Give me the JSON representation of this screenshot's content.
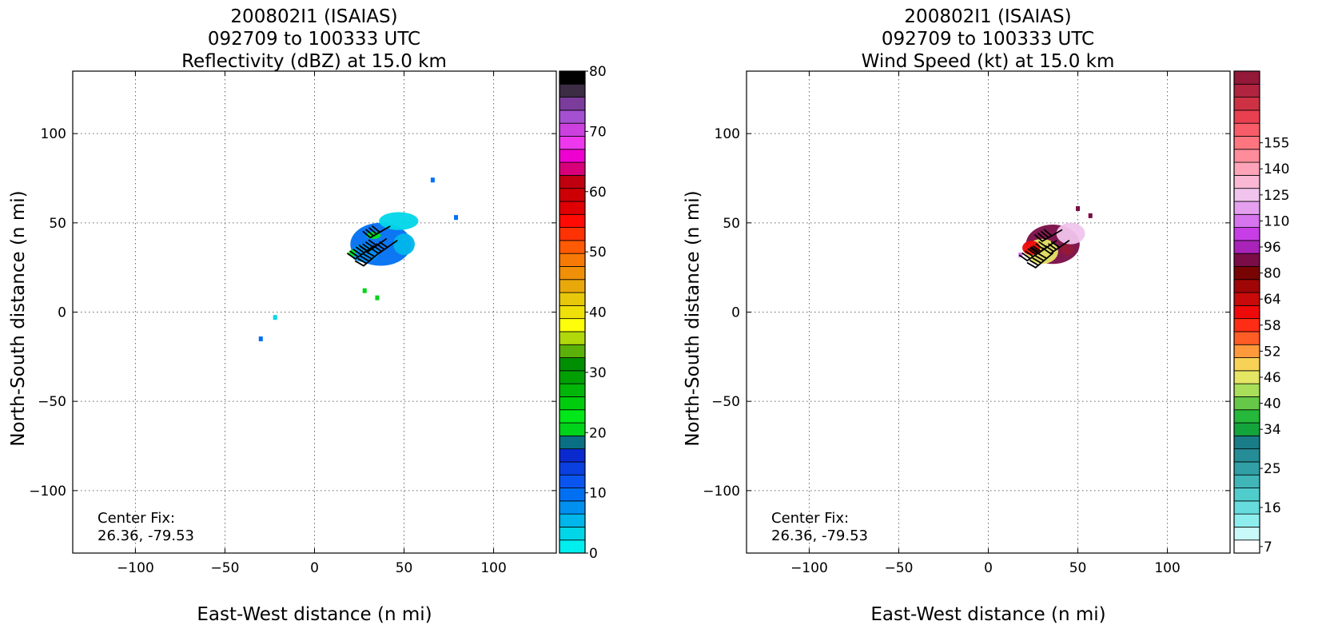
{
  "chart_data": [
    {
      "type": "heatmap",
      "title_lines": [
        "200802I1 (ISAIAS)",
        "092709 to 100333 UTC",
        "Reflectivity (dBZ) at 15.0 km"
      ],
      "xlabel": "East-West distance (n mi)",
      "ylabel": "North-South distance (n mi)",
      "xlim": [
        -135,
        135
      ],
      "ylim": [
        -135,
        135
      ],
      "xticks": [
        -100,
        -50,
        0,
        50,
        100
      ],
      "yticks": [
        -100,
        -50,
        0,
        50,
        100
      ],
      "tick_labels": [
        "−100",
        "−50",
        "0",
        "50",
        "100"
      ],
      "grid": true,
      "annotation_lines": [
        "Center Fix:",
        "26.36, -79.53"
      ],
      "colorbar": {
        "min": 0,
        "max": 80,
        "tick_values": [
          0,
          10,
          20,
          30,
          40,
          50,
          60,
          70,
          80
        ],
        "tick_labels": [
          "0",
          "10",
          "20",
          "30",
          "40",
          "50",
          "60",
          "70",
          "80"
        ],
        "colors": [
          "#00eeee",
          "#00d6e8",
          "#00b6ea",
          "#0090f0",
          "#0070f2",
          "#0a55f0",
          "#0a3fe0",
          "#0a2ad0",
          "#0a6f82",
          "#00d41a",
          "#00e81a",
          "#00cc0e",
          "#00b608",
          "#00a004",
          "#008e02",
          "#5cb00a",
          "#b0d80a",
          "#fffe0a",
          "#f0e00a",
          "#e8c80a",
          "#e8a80a",
          "#f09008",
          "#f87a06",
          "#ff5a04",
          "#ff3204",
          "#ff0a04",
          "#e00004",
          "#cc0004",
          "#c00010",
          "#d8007a",
          "#ee00d0",
          "#ee38ee",
          "#cc40e0",
          "#a450d0",
          "#7b3c9c",
          "#3c2c44",
          "#000000"
        ]
      },
      "echo_regions": [
        {
          "shape": "blob",
          "cx": 37,
          "cy": 38,
          "rx": 17,
          "ry": 12,
          "value": 10
        },
        {
          "shape": "blob",
          "cx": 47,
          "cy": 51,
          "rx": 11,
          "ry": 5,
          "value": 4
        },
        {
          "shape": "blob",
          "cx": 28,
          "cy": 33,
          "rx": 8,
          "ry": 5,
          "value": 8
        },
        {
          "shape": "blob",
          "cx": 50,
          "cy": 38,
          "rx": 6,
          "ry": 6,
          "value": 6
        },
        {
          "shape": "blob",
          "cx": 33,
          "cy": 43,
          "rx": 4,
          "ry": 2,
          "value": 22
        },
        {
          "shape": "blob",
          "cx": 21,
          "cy": 33,
          "rx": 2,
          "ry": 2,
          "value": 22
        },
        {
          "shape": "cell",
          "x": 66,
          "y": 74,
          "value": 10
        },
        {
          "shape": "cell",
          "x": 79,
          "y": 53,
          "value": 10
        },
        {
          "shape": "cell",
          "x": 35,
          "y": 8,
          "value": 20
        },
        {
          "shape": "cell",
          "x": 28,
          "y": 12,
          "value": 20
        },
        {
          "shape": "cell",
          "x": -22,
          "y": -3,
          "value": 4
        },
        {
          "shape": "cell",
          "x": -30,
          "y": -15,
          "value": 10
        }
      ],
      "wind_barbs": [
        {
          "x": 33,
          "y": 37,
          "dir": 235,
          "kt": 50
        },
        {
          "x": 40,
          "y": 41,
          "dir": 235,
          "kt": 45
        },
        {
          "x": 42,
          "y": 48,
          "dir": 240,
          "kt": 40
        },
        {
          "x": 37,
          "y": 34,
          "dir": 230,
          "kt": 55
        },
        {
          "x": 46,
          "y": 40,
          "dir": 235,
          "kt": 45
        }
      ]
    },
    {
      "type": "heatmap",
      "title_lines": [
        "200802I1 (ISAIAS)",
        "092709 to 100333 UTC",
        "Wind Speed (kt) at 15.0 km"
      ],
      "xlabel": "East-West distance (n mi)",
      "ylabel": "North-South distance (n mi)",
      "xlim": [
        -135,
        135
      ],
      "ylim": [
        -135,
        135
      ],
      "xticks": [
        -100,
        -50,
        0,
        50,
        100
      ],
      "yticks": [
        -100,
        -50,
        0,
        50,
        100
      ],
      "tick_labels": [
        "−100",
        "−50",
        "0",
        "50",
        "100"
      ],
      "grid": true,
      "annotation_lines": [
        "Center Fix:",
        "26.36, -79.53"
      ],
      "colorbar": {
        "tick_labels": [
          "7",
          "16",
          "25",
          "34",
          "40",
          "46",
          "52",
          "58",
          "64",
          "80",
          "96",
          "110",
          "125",
          "140",
          "155"
        ],
        "tick_indices": [
          0.5,
          3.5,
          6.5,
          9.5,
          11.5,
          13.5,
          15.5,
          17.5,
          19.5,
          21.5,
          23.5,
          25.5,
          27.5,
          29.5,
          31.5
        ],
        "colors": [
          "#ffffff",
          "#c8fafa",
          "#8eeeee",
          "#66dcdc",
          "#50cccc",
          "#40b6b8",
          "#30a0a6",
          "#268c96",
          "#1a7c86",
          "#14a43c",
          "#26b83a",
          "#66c848",
          "#a8de5a",
          "#e4e664",
          "#f8d256",
          "#ff9a3c",
          "#ff5c26",
          "#ff2c16",
          "#ee0a0a",
          "#c80a0a",
          "#a00606",
          "#780404",
          "#7a0c46",
          "#a824b8",
          "#c83ee6",
          "#d674ee",
          "#e4a0ee",
          "#f0c4ec",
          "#fab8d4",
          "#ffa4b8",
          "#ff8c9a",
          "#ff7680",
          "#f85c68",
          "#e84050",
          "#cc3244",
          "#b02440",
          "#941838"
        ]
      },
      "echo_regions": [
        {
          "shape": "blob",
          "cx": 36,
          "cy": 38,
          "rx": 15,
          "ry": 11,
          "value": 22
        },
        {
          "shape": "blob",
          "cx": 30,
          "cy": 34,
          "rx": 9,
          "ry": 7,
          "value": 13
        },
        {
          "shape": "blob",
          "cx": 46,
          "cy": 44,
          "rx": 8,
          "ry": 6,
          "value": 27
        },
        {
          "shape": "blob",
          "cx": 44,
          "cy": 35,
          "rx": 4,
          "ry": 3,
          "value": 42
        },
        {
          "shape": "blob",
          "cx": 24,
          "cy": 36,
          "rx": 5,
          "ry": 4,
          "value": 18
        },
        {
          "shape": "cell",
          "x": 50,
          "y": 58,
          "value": 22
        },
        {
          "shape": "cell",
          "x": 57,
          "y": 54,
          "value": 22
        },
        {
          "shape": "cell",
          "x": 18,
          "y": 32,
          "value": 25
        }
      ],
      "wind_barbs": [
        {
          "x": 32,
          "y": 36,
          "dir": 235,
          "kt": 50
        },
        {
          "x": 38,
          "y": 40,
          "dir": 235,
          "kt": 45
        },
        {
          "x": 41,
          "y": 46,
          "dir": 240,
          "kt": 40
        },
        {
          "x": 36,
          "y": 33,
          "dir": 230,
          "kt": 55
        },
        {
          "x": 45,
          "y": 40,
          "dir": 235,
          "kt": 45
        }
      ]
    }
  ]
}
